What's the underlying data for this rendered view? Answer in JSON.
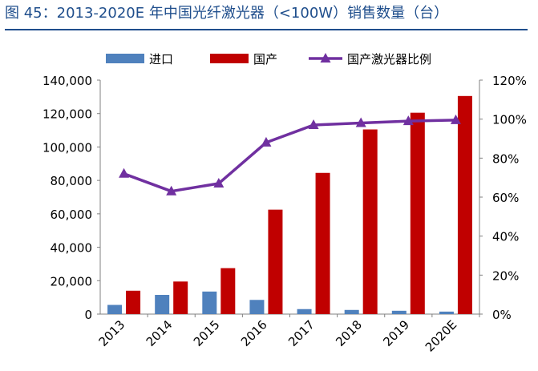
{
  "figure": {
    "title": "图 45：2013-2020E 年中国光纤激光器（<100W）销售数量（台）"
  },
  "colors": {
    "import": "#4f81bd",
    "domestic": "#c00000",
    "ratio": "#7030a0",
    "title": "#1f4e8c"
  },
  "chart_data": {
    "type": "bar",
    "title": "图 45：2013-2020E 年中国光纤激光器（<100W）销售数量（台）",
    "categories": [
      "2013",
      "2014",
      "2015",
      "2016",
      "2017",
      "2018",
      "2019",
      "2020E"
    ],
    "series": [
      {
        "name": "进口",
        "type": "bar",
        "axis": "left",
        "values": [
          5500,
          11500,
          13500,
          8500,
          3000,
          2500,
          2000,
          1500
        ]
      },
      {
        "name": "国产",
        "type": "bar",
        "axis": "left",
        "values": [
          14000,
          19500,
          27500,
          62500,
          84500,
          110500,
          120500,
          130500
        ]
      },
      {
        "name": "国产激光器比例",
        "type": "line",
        "axis": "right",
        "values": [
          72,
          63,
          67,
          88,
          97,
          98,
          99,
          99.5
        ]
      }
    ],
    "ylim": [
      0,
      140000
    ],
    "y2lim": [
      0,
      120
    ],
    "y_ticks": [
      "0",
      "20,000",
      "40,000",
      "60,000",
      "80,000",
      "100,000",
      "120,000",
      "140,000"
    ],
    "y2_ticks": [
      "0%",
      "20%",
      "40%",
      "60%",
      "80%",
      "100%",
      "120%"
    ],
    "legend": "top",
    "grid": false
  }
}
